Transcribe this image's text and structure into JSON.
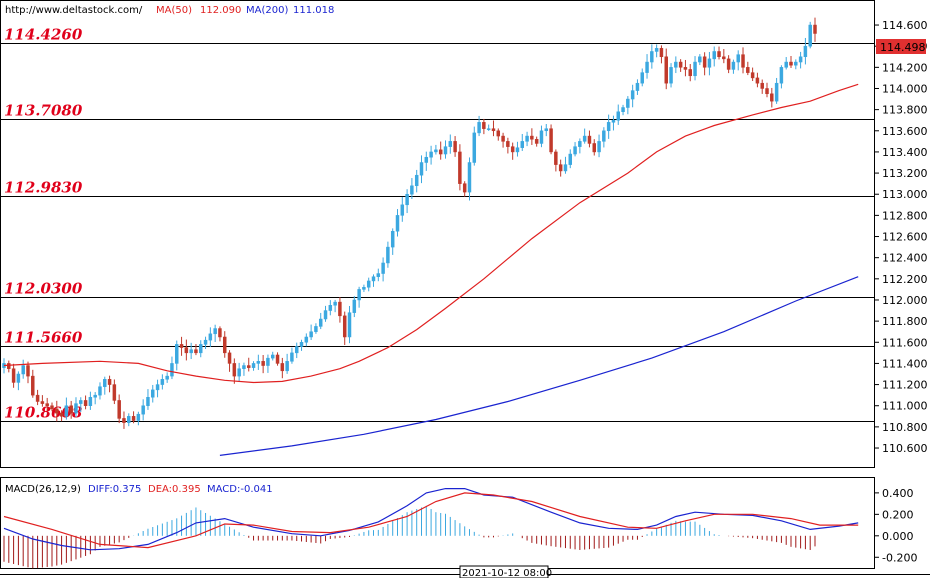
{
  "chart_data": {
    "type": "candlestick",
    "header": {
      "url": "http://www.deltastock.com/",
      "ma50_label": "MA(50)",
      "ma50_value": "112.090",
      "ma200_label": "MA(200)",
      "ma200_value": "111.018"
    },
    "colors": {
      "up": "#3ba8e0",
      "down": "#c0392b",
      "ma50": "#e02020",
      "ma200": "#1a24d0",
      "level_text": "#e0001a",
      "diff": "#1a24d0",
      "dea": "#e02020",
      "hist_pos": "#3ba8e0",
      "hist_neg": "#a01818"
    },
    "price_axis": {
      "ylim": [
        110.43,
        114.78
      ],
      "ticks": [
        "114.600",
        "114.400",
        "114.200",
        "114.000",
        "113.800",
        "113.600",
        "113.400",
        "113.200",
        "113.000",
        "112.800",
        "112.600",
        "112.400",
        "112.200",
        "112.000",
        "111.800",
        "111.600",
        "111.400",
        "111.200",
        "111.000",
        "110.800",
        "110.600"
      ],
      "current_price": "114.498"
    },
    "levels": [
      {
        "value": 114.426,
        "label": "114.4260"
      },
      {
        "value": 113.708,
        "label": "113.7080"
      },
      {
        "value": 112.983,
        "label": "112.9830"
      },
      {
        "value": 112.03,
        "label": "112.0300"
      },
      {
        "value": 111.566,
        "label": "111.5660"
      },
      {
        "value": 110.86,
        "label": "110.8608"
      }
    ],
    "closes": [
      111.4,
      111.35,
      111.22,
      111.3,
      111.38,
      111.28,
      111.1,
      111.04,
      111.02,
      111.0,
      110.97,
      110.93,
      110.9,
      111.0,
      110.93,
      111.02,
      111.05,
      111.0,
      111.08,
      111.1,
      111.18,
      111.25,
      111.2,
      111.05,
      110.88,
      110.84,
      110.9,
      110.86,
      110.92,
      111.0,
      111.08,
      111.15,
      111.2,
      111.25,
      111.28,
      111.4,
      111.58,
      111.55,
      111.5,
      111.53,
      111.5,
      111.58,
      111.62,
      111.68,
      111.73,
      111.65,
      111.5,
      111.4,
      111.28,
      111.35,
      111.38,
      111.36,
      111.4,
      111.42,
      111.38,
      111.45,
      111.48,
      111.4,
      111.33,
      111.42,
      111.5,
      111.56,
      111.6,
      111.65,
      111.7,
      111.75,
      111.82,
      111.9,
      111.95,
      111.98,
      111.85,
      111.65,
      111.88,
      112.0,
      112.1,
      112.12,
      112.18,
      112.22,
      112.25,
      112.35,
      112.5,
      112.65,
      112.8,
      112.9,
      113.0,
      113.08,
      113.18,
      113.3,
      113.35,
      113.4,
      113.42,
      113.38,
      113.45,
      113.5,
      113.4,
      113.1,
      113.02,
      113.3,
      113.58,
      113.68,
      113.62,
      113.62,
      113.6,
      113.55,
      113.5,
      113.45,
      113.4,
      113.44,
      113.5,
      113.55,
      113.52,
      113.48,
      113.6,
      113.62,
      113.4,
      113.28,
      113.22,
      113.28,
      113.38,
      113.45,
      113.5,
      113.55,
      113.48,
      113.4,
      113.5,
      113.6,
      113.68,
      113.7,
      113.78,
      113.82,
      113.9,
      113.98,
      114.05,
      114.15,
      114.25,
      114.35,
      114.38,
      114.3,
      114.05,
      114.2,
      114.25,
      114.2,
      114.18,
      114.12,
      114.25,
      114.3,
      114.2,
      114.28,
      114.35,
      114.3,
      114.28,
      114.18,
      114.25,
      114.32,
      114.2,
      114.15,
      114.1,
      114.05,
      114.0,
      113.95,
      113.88,
      114.05,
      114.2,
      114.25,
      114.22,
      114.25,
      114.3,
      114.4,
      114.6,
      114.52
    ],
    "ma50_points": [
      [
        0,
        111.38
      ],
      [
        8,
        111.4
      ],
      [
        20,
        111.42
      ],
      [
        28,
        111.4
      ],
      [
        34,
        111.33
      ],
      [
        40,
        111.28
      ],
      [
        46,
        111.24
      ],
      [
        52,
        111.22
      ],
      [
        58,
        111.23
      ],
      [
        64,
        111.28
      ],
      [
        70,
        111.35
      ],
      [
        74,
        111.42
      ],
      [
        80,
        111.55
      ],
      [
        86,
        111.72
      ],
      [
        92,
        111.92
      ],
      [
        100,
        112.2
      ],
      [
        110,
        112.58
      ],
      [
        120,
        112.92
      ],
      [
        130,
        113.2
      ],
      [
        136,
        113.4
      ],
      [
        142,
        113.55
      ],
      [
        148,
        113.65
      ],
      [
        156,
        113.75
      ],
      [
        162,
        113.82
      ],
      [
        168,
        113.88
      ],
      [
        174,
        113.98
      ],
      [
        178,
        114.04
      ]
    ],
    "ma200_points": [
      [
        45,
        110.53
      ],
      [
        60,
        110.62
      ],
      [
        75,
        110.73
      ],
      [
        90,
        110.87
      ],
      [
        105,
        111.04
      ],
      [
        120,
        111.24
      ],
      [
        135,
        111.45
      ],
      [
        150,
        111.7
      ],
      [
        165,
        111.99
      ],
      [
        178,
        112.22
      ]
    ],
    "macd": {
      "label": "MACD(26,12,9)",
      "diff_label": "DIFF:0.375",
      "dea_label": "DEA:0.395",
      "macd_label": "MACD:-0.041",
      "ylim": [
        -0.3,
        0.52
      ],
      "ticks": [
        "0.400",
        "0.200",
        "0.000",
        "-0.200"
      ],
      "time_label": "2021-10-12 08:00",
      "diff_points": [
        [
          0,
          0.07
        ],
        [
          6,
          -0.03
        ],
        [
          12,
          -0.09
        ],
        [
          18,
          -0.13
        ],
        [
          24,
          -0.12
        ],
        [
          30,
          -0.08
        ],
        [
          36,
          0.03
        ],
        [
          40,
          0.12
        ],
        [
          46,
          0.16
        ],
        [
          52,
          0.08
        ],
        [
          60,
          0.02
        ],
        [
          66,
          0.0
        ],
        [
          72,
          0.05
        ],
        [
          78,
          0.13
        ],
        [
          84,
          0.28
        ],
        [
          88,
          0.4
        ],
        [
          92,
          0.44
        ],
        [
          96,
          0.44
        ],
        [
          100,
          0.38
        ],
        [
          106,
          0.36
        ],
        [
          114,
          0.22
        ],
        [
          120,
          0.12
        ],
        [
          126,
          0.07
        ],
        [
          132,
          0.06
        ],
        [
          136,
          0.1
        ],
        [
          140,
          0.18
        ],
        [
          144,
          0.22
        ],
        [
          150,
          0.2
        ],
        [
          156,
          0.19
        ],
        [
          162,
          0.14
        ],
        [
          168,
          0.06
        ],
        [
          174,
          0.09
        ],
        [
          178,
          0.12
        ]
      ],
      "dea_points": [
        [
          0,
          0.18
        ],
        [
          10,
          0.06
        ],
        [
          20,
          -0.08
        ],
        [
          30,
          -0.11
        ],
        [
          40,
          0.0
        ],
        [
          46,
          0.11
        ],
        [
          52,
          0.1
        ],
        [
          60,
          0.04
        ],
        [
          68,
          0.03
        ],
        [
          76,
          0.08
        ],
        [
          84,
          0.18
        ],
        [
          90,
          0.32
        ],
        [
          96,
          0.4
        ],
        [
          102,
          0.38
        ],
        [
          110,
          0.32
        ],
        [
          120,
          0.18
        ],
        [
          130,
          0.08
        ],
        [
          136,
          0.07
        ],
        [
          142,
          0.14
        ],
        [
          148,
          0.2
        ],
        [
          156,
          0.2
        ],
        [
          164,
          0.16
        ],
        [
          170,
          0.1
        ],
        [
          178,
          0.1
        ]
      ]
    }
  }
}
